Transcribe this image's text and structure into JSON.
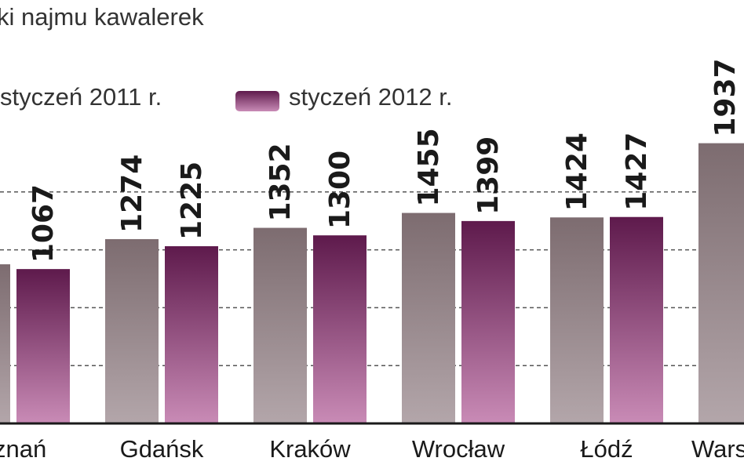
{
  "chart_data": {
    "type": "bar",
    "title": "ki najmu kawalerek",
    "categories": [
      "oznań",
      "Gdańsk",
      "Kraków",
      "Wrocław",
      "Łódź",
      "Wars"
    ],
    "series": [
      {
        "name": "styczeń 2011 r.",
        "values": [
          1100,
          1274,
          1352,
          1455,
          1424,
          1937
        ],
        "labels": [
          "",
          "1274",
          "1352",
          "1455",
          "1424",
          "1937"
        ],
        "color_top": "#7d6c70",
        "color_bottom": "#b3a6aa"
      },
      {
        "name": "styczeń 2012 r.",
        "values": [
          1067,
          1225,
          1300,
          1399,
          1427,
          null
        ],
        "labels": [
          "1067",
          "1225",
          "1300",
          "1399",
          "1427",
          ""
        ],
        "color_top": "#5e1a4c",
        "color_bottom": "#c98bb6"
      }
    ],
    "ylim": [
      0,
      2000
    ],
    "grid": true,
    "grid_values": [
      400,
      800,
      1200,
      1600
    ],
    "legend_placement": "top"
  }
}
